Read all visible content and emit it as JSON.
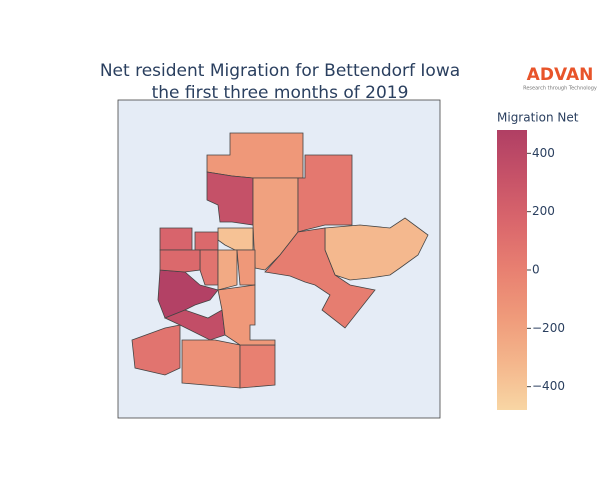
{
  "logo": {
    "name": "ADVAN",
    "tagline": "Research through Technology"
  },
  "chart_data": {
    "type": "choropleth",
    "title": [
      "Net resident Migration for Bettendorf Iowa",
      "the first three months of 2019"
    ],
    "colorbar_title": "Migration Net",
    "colorscale": [
      "#f8d6a4",
      "#f4b68c",
      "#ef9a7a",
      "#e88071",
      "#da676c",
      "#c65268",
      "#b03f64"
    ],
    "zlim": [
      -480,
      480
    ],
    "zticks": [
      {
        "value": 400,
        "label": "400"
      },
      {
        "value": 200,
        "label": "200"
      },
      {
        "value": 0,
        "label": "0"
      },
      {
        "value": -200,
        "label": "−200"
      },
      {
        "value": -400,
        "label": "−400"
      }
    ],
    "values": [
      -150,
      330,
      -200,
      50,
      -330,
      20,
      -380,
      180,
      150,
      80,
      -250,
      -150,
      460,
      350,
      80,
      -100,
      0,
      -150,
      150
    ]
  }
}
